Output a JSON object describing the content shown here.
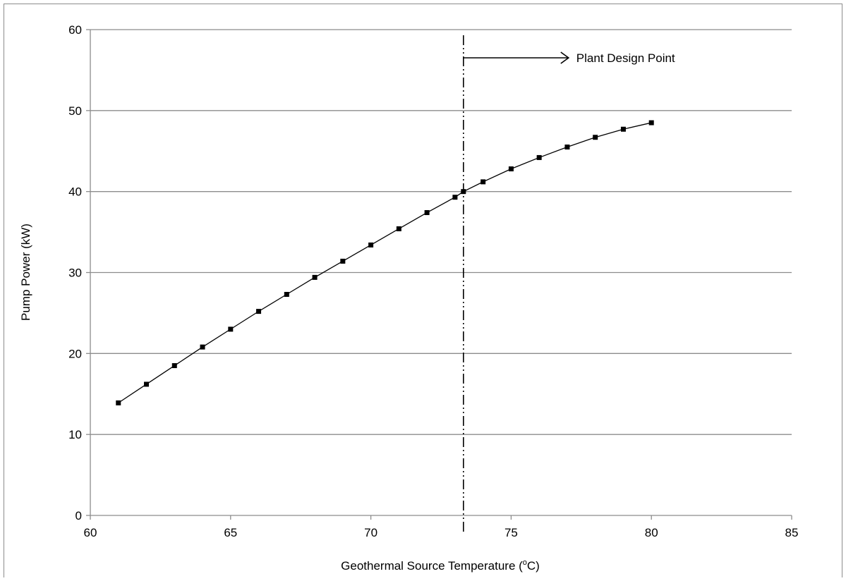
{
  "chart_data": {
    "type": "scatter",
    "title": "",
    "xlabel": "Geothermal Source Temperature (",
    "xlabel_sup": "o",
    "xlabel_suffix": "C)",
    "ylabel": "Pump Power (kW)",
    "xlim": [
      60,
      85
    ],
    "ylim": [
      0,
      60
    ],
    "x_ticks": [
      60,
      65,
      70,
      75,
      80,
      85
    ],
    "y_ticks": [
      0,
      10,
      20,
      30,
      40,
      50,
      60
    ],
    "grid": "horizontal major gridlines",
    "legend": "none",
    "line_color": "#000000",
    "marker": "square",
    "series": [
      {
        "x": [
          61,
          62,
          63,
          64,
          65,
          66,
          67,
          68,
          69,
          70,
          71,
          72,
          73,
          73.3,
          74,
          75,
          76,
          77,
          78,
          79,
          80
        ],
        "y": [
          13.9,
          16.2,
          18.5,
          20.8,
          23.0,
          25.2,
          27.3,
          29.4,
          31.4,
          33.4,
          35.4,
          37.4,
          39.3,
          40.0,
          41.2,
          42.8,
          44.2,
          45.5,
          46.7,
          47.7,
          48.5
        ]
      }
    ],
    "annotations": [
      {
        "text": "Plant Design Point",
        "x": 73.3,
        "style": "dash-dot vertical line with right arrow"
      }
    ]
  }
}
